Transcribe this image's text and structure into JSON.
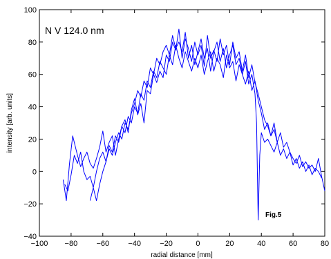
{
  "chart_data": {
    "type": "line",
    "title": "",
    "xlabel": "radial distance [mm]",
    "ylabel": "intensity [arb. units]",
    "xlim": [
      -100,
      80
    ],
    "ylim": [
      -40,
      100
    ],
    "xticks": [
      -100,
      -80,
      -60,
      -40,
      -20,
      0,
      20,
      40,
      60,
      80
    ],
    "yticks": [
      -40,
      -20,
      0,
      20,
      40,
      60,
      80,
      100
    ],
    "grid": false,
    "line_color": "#0000ff",
    "annotations": [
      {
        "text": "N V 124.0 nm",
        "x": -96,
        "y": 88
      },
      {
        "text": "Fig.5",
        "x": 36,
        "y": -27
      }
    ],
    "series": [
      {
        "values_x": [
          -85,
          -83,
          -81,
          -79,
          -78,
          -76,
          -74,
          -72,
          -70,
          -68,
          -66,
          -64,
          -62,
          -60,
          -58,
          -56,
          -54,
          -52,
          -50,
          -48,
          -46,
          -44,
          -42,
          -40,
          -38,
          -36,
          -34,
          -32,
          -30,
          -28,
          -26,
          -24,
          -22,
          -20,
          -18,
          -16,
          -14,
          -12,
          -10,
          -8,
          -6,
          -4,
          -2,
          0,
          2,
          4,
          6,
          8,
          10,
          12,
          14,
          16,
          18,
          20,
          22,
          24,
          26,
          28,
          30,
          32,
          34,
          36,
          38,
          40,
          42,
          44,
          46,
          48,
          50,
          52,
          54,
          56,
          58,
          60,
          62,
          64,
          66,
          68,
          70,
          72,
          74,
          76,
          78,
          80
        ],
        "values_y": [
          -5,
          -18,
          5,
          22,
          18,
          10,
          3,
          8,
          12,
          5,
          2,
          8,
          15,
          25,
          12,
          18,
          22,
          10,
          20,
          28,
          32,
          24,
          38,
          45,
          35,
          42,
          30,
          50,
          48,
          60,
          55,
          62,
          58,
          72,
          68,
          80,
          75,
          88,
          70,
          82,
          76,
          68,
          80,
          72,
          78,
          65,
          84,
          70,
          75,
          68,
          82,
          72,
          78,
          66,
          80,
          70,
          74,
          62,
          72,
          58,
          66,
          55,
          48,
          40,
          32,
          28,
          22,
          30,
          18,
          24,
          15,
          18,
          12,
          8,
          5,
          10,
          3,
          6,
          2,
          4,
          0,
          8,
          -3,
          -12
        ]
      },
      {
        "values_x": [
          -84,
          -82,
          -80,
          -78,
          -76,
          -74,
          -72,
          -70,
          -68,
          -66,
          -64,
          -62,
          -60,
          -58,
          -56,
          -54,
          -52,
          -50,
          -48,
          -46,
          -44,
          -42,
          -40,
          -38,
          -36,
          -34,
          -32,
          -30,
          -28,
          -26,
          -24,
          -22,
          -20,
          -18,
          -16,
          -14,
          -12,
          -10,
          -8,
          -6,
          -4,
          -2,
          0,
          2,
          4,
          6,
          8,
          10,
          12,
          14,
          16,
          18,
          20,
          22,
          24,
          26,
          28,
          30,
          32,
          34,
          36,
          37,
          38,
          39,
          40,
          42,
          44,
          46,
          48,
          50,
          52,
          54,
          56,
          58,
          60,
          62,
          64,
          66,
          68,
          70,
          72,
          74,
          76,
          78
        ],
        "values_y": [
          -8,
          -12,
          -2,
          10,
          5,
          12,
          0,
          -5,
          -3,
          -10,
          -18,
          -8,
          0,
          6,
          14,
          10,
          18,
          24,
          20,
          30,
          26,
          36,
          42,
          50,
          46,
          56,
          52,
          64,
          60,
          70,
          66,
          74,
          78,
          72,
          84,
          76,
          80,
          74,
          86,
          70,
          78,
          66,
          74,
          82,
          70,
          76,
          62,
          74,
          80,
          68,
          76,
          64,
          72,
          78,
          66,
          70,
          60,
          68,
          54,
          60,
          48,
          30,
          -30,
          10,
          24,
          18,
          20,
          16,
          12,
          18,
          10,
          14,
          8,
          12,
          4,
          8,
          2,
          6,
          0,
          4,
          -2,
          2,
          0,
          -4
        ]
      },
      {
        "values_x": [
          -68,
          -66,
          -64,
          -62,
          -60,
          -58,
          -56,
          -54,
          -52,
          -50,
          -48,
          -46,
          -44,
          -42,
          -40,
          -38,
          -36,
          -34,
          -32,
          -30,
          -28,
          -26,
          -24,
          -22,
          -20,
          -18,
          -16,
          -14,
          -12,
          -10,
          -8,
          -6,
          -4,
          -2,
          0,
          2,
          4,
          6,
          8,
          10,
          12,
          14,
          16,
          18,
          20,
          22,
          24,
          26,
          28,
          30,
          32,
          34,
          36,
          38,
          40,
          42,
          44,
          46,
          48,
          50
        ],
        "values_y": [
          -18,
          -10,
          0,
          8,
          12,
          6,
          16,
          12,
          22,
          18,
          28,
          24,
          34,
          30,
          40,
          36,
          48,
          44,
          56,
          52,
          62,
          58,
          68,
          64,
          60,
          72,
          66,
          78,
          70,
          64,
          74,
          68,
          62,
          70,
          64,
          72,
          60,
          68,
          74,
          62,
          70,
          66,
          58,
          72,
          64,
          68,
          56,
          66,
          60,
          54,
          62,
          50,
          56,
          44,
          36,
          26,
          30,
          22,
          26,
          18
        ]
      }
    ]
  }
}
